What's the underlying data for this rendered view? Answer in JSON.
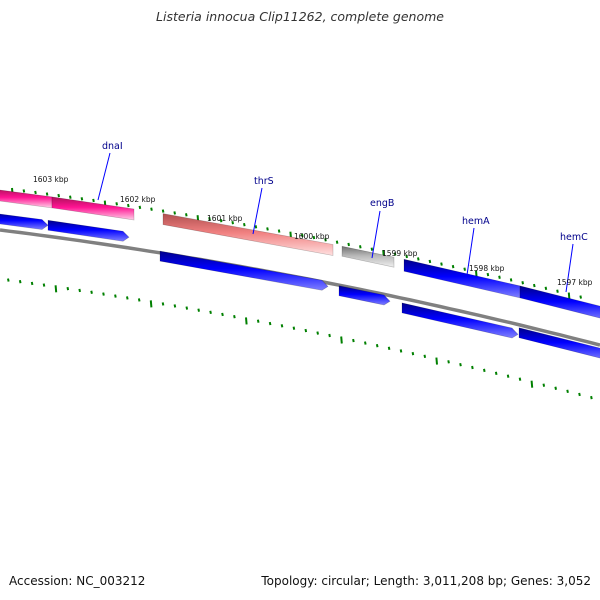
{
  "title": "Listeria innocua Clip11262, complete genome",
  "footer": {
    "accession": "Accession: NC_003212",
    "summary": "Topology: circular; Length: 3,011,208 bp; Genes: 3,052"
  },
  "colors": {
    "cds_blue": "#0000ff",
    "gene_magenta": "#ff1493",
    "gene_salmon": "#f08080",
    "gene_gray": "#b0b0b0",
    "backbone": "#808080",
    "tick_green": "#008000",
    "label_navy": "#00008b"
  },
  "scale_labels": [
    "1603 kbp",
    "1602 kbp",
    "1601 kbp",
    "1600 kbp",
    "1599 kbp",
    "1598 kbp",
    "1597 kbp"
  ],
  "genes": [
    {
      "name": "dnaI"
    },
    {
      "name": "thrS"
    },
    {
      "name": "engB"
    },
    {
      "name": "hemA"
    },
    {
      "name": "hemC"
    }
  ]
}
